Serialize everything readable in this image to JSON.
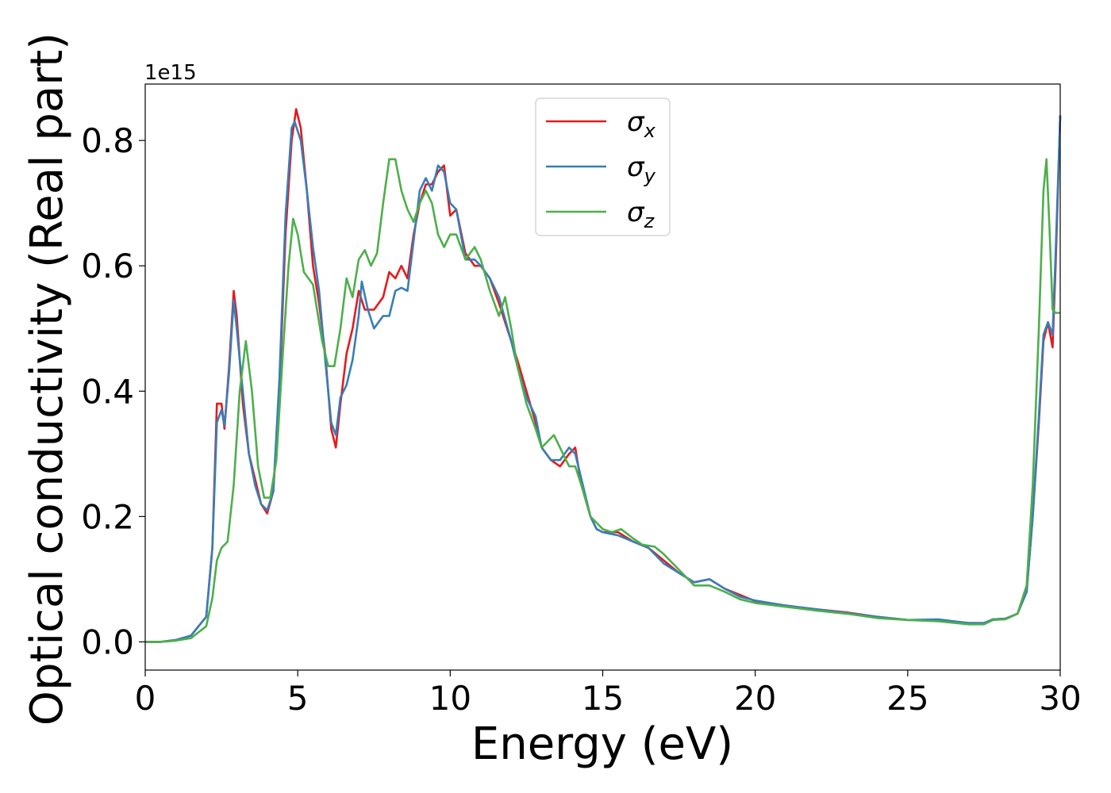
{
  "chart_data": {
    "type": "line",
    "xlabel": "Energy (eV)",
    "ylabel": "Optical conductivity (Real part)",
    "y_offset_label": "1e15",
    "xlim": [
      0,
      30
    ],
    "ylim": [
      -0.045,
      0.89
    ],
    "xticks": [
      0,
      5,
      10,
      15,
      20,
      25,
      30
    ],
    "xtick_labels": [
      "0",
      "5",
      "10",
      "15",
      "20",
      "25",
      "30"
    ],
    "yticks": [
      0.0,
      0.2,
      0.4,
      0.6,
      0.8
    ],
    "ytick_labels": [
      "0.0",
      "0.2",
      "0.4",
      "0.6",
      "0.8"
    ],
    "grid": false,
    "legend": {
      "placement": "upper-center"
    },
    "series": [
      {
        "name": "σx",
        "symbol": "σ",
        "subscript": "x",
        "color": "#e41a1c",
        "points": [
          [
            0,
            0.0
          ],
          [
            0.5,
            0.0
          ],
          [
            1.0,
            0.003
          ],
          [
            1.5,
            0.01
          ],
          [
            2.0,
            0.04
          ],
          [
            2.2,
            0.15
          ],
          [
            2.35,
            0.38
          ],
          [
            2.5,
            0.38
          ],
          [
            2.6,
            0.34
          ],
          [
            2.75,
            0.44
          ],
          [
            2.9,
            0.56
          ],
          [
            3.0,
            0.52
          ],
          [
            3.2,
            0.38
          ],
          [
            3.4,
            0.3
          ],
          [
            3.6,
            0.26
          ],
          [
            3.8,
            0.22
          ],
          [
            4.0,
            0.205
          ],
          [
            4.2,
            0.24
          ],
          [
            4.4,
            0.4
          ],
          [
            4.6,
            0.65
          ],
          [
            4.8,
            0.8
          ],
          [
            4.95,
            0.85
          ],
          [
            5.1,
            0.82
          ],
          [
            5.3,
            0.72
          ],
          [
            5.5,
            0.6
          ],
          [
            5.7,
            0.54
          ],
          [
            5.9,
            0.46
          ],
          [
            6.1,
            0.34
          ],
          [
            6.25,
            0.31
          ],
          [
            6.4,
            0.38
          ],
          [
            6.6,
            0.46
          ],
          [
            6.8,
            0.5
          ],
          [
            7.0,
            0.56
          ],
          [
            7.2,
            0.53
          ],
          [
            7.5,
            0.53
          ],
          [
            7.8,
            0.55
          ],
          [
            8.0,
            0.59
          ],
          [
            8.2,
            0.58
          ],
          [
            8.4,
            0.6
          ],
          [
            8.6,
            0.58
          ],
          [
            8.8,
            0.65
          ],
          [
            9.0,
            0.7
          ],
          [
            9.2,
            0.73
          ],
          [
            9.4,
            0.73
          ],
          [
            9.6,
            0.75
          ],
          [
            9.8,
            0.76
          ],
          [
            10.0,
            0.68
          ],
          [
            10.2,
            0.69
          ],
          [
            10.5,
            0.62
          ],
          [
            10.8,
            0.6
          ],
          [
            11.0,
            0.6
          ],
          [
            11.3,
            0.58
          ],
          [
            11.6,
            0.54
          ],
          [
            12.0,
            0.48
          ],
          [
            12.2,
            0.45
          ],
          [
            12.5,
            0.4
          ],
          [
            12.8,
            0.35
          ],
          [
            13.0,
            0.31
          ],
          [
            13.3,
            0.29
          ],
          [
            13.6,
            0.28
          ],
          [
            13.9,
            0.3
          ],
          [
            14.1,
            0.31
          ],
          [
            14.3,
            0.25
          ],
          [
            14.6,
            0.2
          ],
          [
            14.8,
            0.18
          ],
          [
            15.0,
            0.175
          ],
          [
            15.5,
            0.175
          ],
          [
            16.0,
            0.16
          ],
          [
            16.5,
            0.15
          ],
          [
            17.0,
            0.13
          ],
          [
            17.5,
            0.11
          ],
          [
            18.0,
            0.095
          ],
          [
            18.5,
            0.1
          ],
          [
            19.0,
            0.085
          ],
          [
            19.5,
            0.075
          ],
          [
            20.0,
            0.065
          ],
          [
            21.0,
            0.058
          ],
          [
            22.0,
            0.052
          ],
          [
            23.0,
            0.047
          ],
          [
            24.0,
            0.04
          ],
          [
            25.0,
            0.035
          ],
          [
            26.0,
            0.035
          ],
          [
            27.0,
            0.03
          ],
          [
            27.5,
            0.03
          ],
          [
            27.8,
            0.036
          ],
          [
            28.2,
            0.037
          ],
          [
            28.6,
            0.045
          ],
          [
            28.9,
            0.08
          ],
          [
            29.1,
            0.2
          ],
          [
            29.3,
            0.35
          ],
          [
            29.45,
            0.48
          ],
          [
            29.6,
            0.51
          ],
          [
            29.75,
            0.47
          ],
          [
            29.85,
            0.6
          ],
          [
            30.0,
            0.84
          ]
        ]
      },
      {
        "name": "σy",
        "symbol": "σ",
        "subscript": "y",
        "color": "#377eb8",
        "points": [
          [
            0,
            0.0
          ],
          [
            0.5,
            0.0
          ],
          [
            1.0,
            0.003
          ],
          [
            1.5,
            0.01
          ],
          [
            2.0,
            0.04
          ],
          [
            2.2,
            0.15
          ],
          [
            2.35,
            0.35
          ],
          [
            2.5,
            0.37
          ],
          [
            2.6,
            0.345
          ],
          [
            2.75,
            0.43
          ],
          [
            2.9,
            0.545
          ],
          [
            3.0,
            0.5
          ],
          [
            3.2,
            0.4
          ],
          [
            3.4,
            0.3
          ],
          [
            3.6,
            0.25
          ],
          [
            3.8,
            0.22
          ],
          [
            4.0,
            0.21
          ],
          [
            4.2,
            0.24
          ],
          [
            4.4,
            0.42
          ],
          [
            4.6,
            0.68
          ],
          [
            4.8,
            0.82
          ],
          [
            4.9,
            0.83
          ],
          [
            5.1,
            0.8
          ],
          [
            5.3,
            0.72
          ],
          [
            5.5,
            0.63
          ],
          [
            5.7,
            0.56
          ],
          [
            5.9,
            0.45
          ],
          [
            6.1,
            0.35
          ],
          [
            6.25,
            0.33
          ],
          [
            6.4,
            0.39
          ],
          [
            6.6,
            0.41
          ],
          [
            6.8,
            0.45
          ],
          [
            7.0,
            0.52
          ],
          [
            7.1,
            0.575
          ],
          [
            7.3,
            0.53
          ],
          [
            7.5,
            0.5
          ],
          [
            7.8,
            0.52
          ],
          [
            8.0,
            0.52
          ],
          [
            8.2,
            0.56
          ],
          [
            8.4,
            0.565
          ],
          [
            8.6,
            0.56
          ],
          [
            8.8,
            0.64
          ],
          [
            9.0,
            0.72
          ],
          [
            9.2,
            0.74
          ],
          [
            9.4,
            0.72
          ],
          [
            9.6,
            0.76
          ],
          [
            9.8,
            0.75
          ],
          [
            10.0,
            0.7
          ],
          [
            10.2,
            0.69
          ],
          [
            10.5,
            0.61
          ],
          [
            10.8,
            0.61
          ],
          [
            11.0,
            0.6
          ],
          [
            11.3,
            0.58
          ],
          [
            11.6,
            0.55
          ],
          [
            12.0,
            0.48
          ],
          [
            12.2,
            0.44
          ],
          [
            12.5,
            0.39
          ],
          [
            12.8,
            0.36
          ],
          [
            13.0,
            0.31
          ],
          [
            13.3,
            0.29
          ],
          [
            13.6,
            0.29
          ],
          [
            13.9,
            0.31
          ],
          [
            14.1,
            0.3
          ],
          [
            14.3,
            0.26
          ],
          [
            14.6,
            0.2
          ],
          [
            14.8,
            0.18
          ],
          [
            15.0,
            0.175
          ],
          [
            15.5,
            0.17
          ],
          [
            16.0,
            0.16
          ],
          [
            16.5,
            0.15
          ],
          [
            17.0,
            0.125
          ],
          [
            17.5,
            0.11
          ],
          [
            18.0,
            0.095
          ],
          [
            18.5,
            0.1
          ],
          [
            19.0,
            0.085
          ],
          [
            19.5,
            0.072
          ],
          [
            20.0,
            0.066
          ],
          [
            21.0,
            0.058
          ],
          [
            22.0,
            0.052
          ],
          [
            23.0,
            0.046
          ],
          [
            24.0,
            0.04
          ],
          [
            25.0,
            0.035
          ],
          [
            26.0,
            0.036
          ],
          [
            27.0,
            0.03
          ],
          [
            27.5,
            0.03
          ],
          [
            27.8,
            0.036
          ],
          [
            28.2,
            0.037
          ],
          [
            28.6,
            0.045
          ],
          [
            28.9,
            0.08
          ],
          [
            29.1,
            0.2
          ],
          [
            29.3,
            0.36
          ],
          [
            29.45,
            0.49
          ],
          [
            29.6,
            0.51
          ],
          [
            29.75,
            0.49
          ],
          [
            29.85,
            0.62
          ],
          [
            30.0,
            0.84
          ]
        ]
      },
      {
        "name": "σz",
        "symbol": "σ",
        "subscript": "z",
        "color": "#4daf4a",
        "points": [
          [
            0,
            0.0
          ],
          [
            0.5,
            0.0
          ],
          [
            1.0,
            0.002
          ],
          [
            1.5,
            0.006
          ],
          [
            2.0,
            0.025
          ],
          [
            2.2,
            0.07
          ],
          [
            2.35,
            0.13
          ],
          [
            2.5,
            0.15
          ],
          [
            2.7,
            0.16
          ],
          [
            2.9,
            0.25
          ],
          [
            3.1,
            0.4
          ],
          [
            3.3,
            0.48
          ],
          [
            3.5,
            0.4
          ],
          [
            3.7,
            0.28
          ],
          [
            3.9,
            0.23
          ],
          [
            4.1,
            0.23
          ],
          [
            4.3,
            0.29
          ],
          [
            4.5,
            0.45
          ],
          [
            4.7,
            0.6
          ],
          [
            4.85,
            0.675
          ],
          [
            5.0,
            0.65
          ],
          [
            5.2,
            0.59
          ],
          [
            5.5,
            0.57
          ],
          [
            5.8,
            0.48
          ],
          [
            6.0,
            0.44
          ],
          [
            6.2,
            0.44
          ],
          [
            6.4,
            0.5
          ],
          [
            6.6,
            0.58
          ],
          [
            6.8,
            0.55
          ],
          [
            7.0,
            0.61
          ],
          [
            7.2,
            0.625
          ],
          [
            7.4,
            0.6
          ],
          [
            7.6,
            0.62
          ],
          [
            7.8,
            0.7
          ],
          [
            8.0,
            0.77
          ],
          [
            8.2,
            0.77
          ],
          [
            8.4,
            0.72
          ],
          [
            8.6,
            0.69
          ],
          [
            8.8,
            0.67
          ],
          [
            9.0,
            0.7
          ],
          [
            9.2,
            0.72
          ],
          [
            9.4,
            0.7
          ],
          [
            9.6,
            0.65
          ],
          [
            9.8,
            0.63
          ],
          [
            10.0,
            0.65
          ],
          [
            10.2,
            0.65
          ],
          [
            10.5,
            0.61
          ],
          [
            10.8,
            0.63
          ],
          [
            11.0,
            0.61
          ],
          [
            11.3,
            0.56
          ],
          [
            11.6,
            0.52
          ],
          [
            11.8,
            0.55
          ],
          [
            12.0,
            0.5
          ],
          [
            12.2,
            0.44
          ],
          [
            12.5,
            0.38
          ],
          [
            12.8,
            0.34
          ],
          [
            13.0,
            0.31
          ],
          [
            13.2,
            0.32
          ],
          [
            13.4,
            0.33
          ],
          [
            13.7,
            0.3
          ],
          [
            13.9,
            0.28
          ],
          [
            14.1,
            0.28
          ],
          [
            14.3,
            0.25
          ],
          [
            14.6,
            0.2
          ],
          [
            15.0,
            0.18
          ],
          [
            15.3,
            0.175
          ],
          [
            15.6,
            0.18
          ],
          [
            16.0,
            0.165
          ],
          [
            16.3,
            0.155
          ],
          [
            16.7,
            0.152
          ],
          [
            17.0,
            0.14
          ],
          [
            17.5,
            0.115
          ],
          [
            18.0,
            0.09
          ],
          [
            18.5,
            0.09
          ],
          [
            19.0,
            0.08
          ],
          [
            19.5,
            0.068
          ],
          [
            20.0,
            0.062
          ],
          [
            21.0,
            0.056
          ],
          [
            22.0,
            0.05
          ],
          [
            23.0,
            0.045
          ],
          [
            24.0,
            0.038
          ],
          [
            25.0,
            0.035
          ],
          [
            26.0,
            0.033
          ],
          [
            27.0,
            0.028
          ],
          [
            27.5,
            0.028
          ],
          [
            27.8,
            0.035
          ],
          [
            28.2,
            0.036
          ],
          [
            28.6,
            0.045
          ],
          [
            28.9,
            0.09
          ],
          [
            29.1,
            0.25
          ],
          [
            29.3,
            0.5
          ],
          [
            29.45,
            0.72
          ],
          [
            29.55,
            0.77
          ],
          [
            29.65,
            0.66
          ],
          [
            29.75,
            0.53
          ],
          [
            29.85,
            0.525
          ],
          [
            30.0,
            0.525
          ]
        ]
      }
    ]
  }
}
